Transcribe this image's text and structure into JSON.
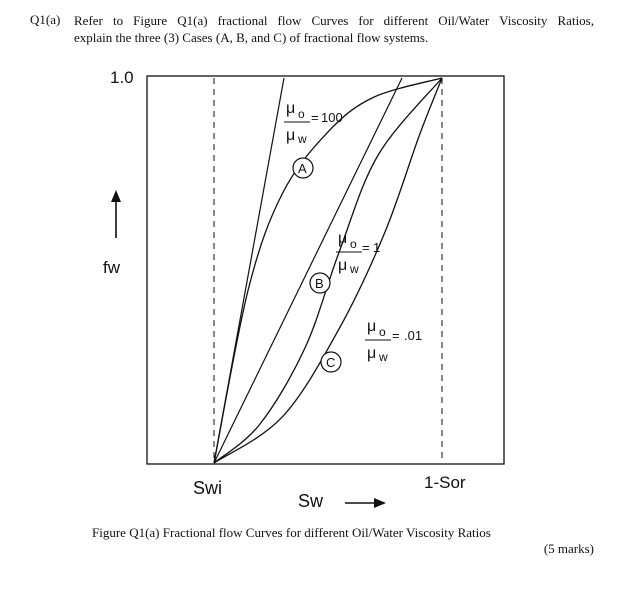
{
  "question": {
    "number": "Q1(a)",
    "line1": "Refer to Figure Q1(a) fractional flow Curves for different Oil/Water Viscosity Ratios,",
    "line2": "explain the three (3) Cases (A, B, and C) of fractional flow systems."
  },
  "figure_caption": "Figure Q1(a) Fractional flow Curves for different Oil/Water Viscosity Ratios",
  "marks": "(5 marks)",
  "chart_data": {
    "type": "line",
    "title": "",
    "xlabel": "Sw",
    "ylabel": "fw",
    "x_ticks": [
      "Swi",
      "1-Sor"
    ],
    "y_ticks": [
      "1.0"
    ],
    "ylim": [
      0,
      1
    ],
    "grid": false,
    "series": [
      {
        "name": "A",
        "ratio_label": "μo/μw = 100",
        "ratio": "100",
        "points": [
          [
            0,
            0
          ],
          [
            0.15,
            0.45
          ],
          [
            0.3,
            0.7
          ],
          [
            0.5,
            0.86
          ],
          [
            0.7,
            0.95
          ],
          [
            1,
            1
          ]
        ]
      },
      {
        "name": "B",
        "ratio_label": "μo/μw = 1",
        "ratio": "1",
        "points": [
          [
            0,
            0
          ],
          [
            0.2,
            0.1
          ],
          [
            0.4,
            0.3
          ],
          [
            0.55,
            0.55
          ],
          [
            0.72,
            0.8
          ],
          [
            1,
            1
          ]
        ]
      },
      {
        "name": "C",
        "ratio_label": "μo/μw = .01",
        "ratio": ".01",
        "points": [
          [
            0,
            0
          ],
          [
            0.3,
            0.12
          ],
          [
            0.55,
            0.35
          ],
          [
            0.75,
            0.6
          ],
          [
            0.9,
            0.85
          ],
          [
            1,
            1
          ]
        ]
      }
    ],
    "annotations": [
      "Swi",
      "1-Sor",
      "1.0",
      "fw",
      "Sw"
    ]
  }
}
